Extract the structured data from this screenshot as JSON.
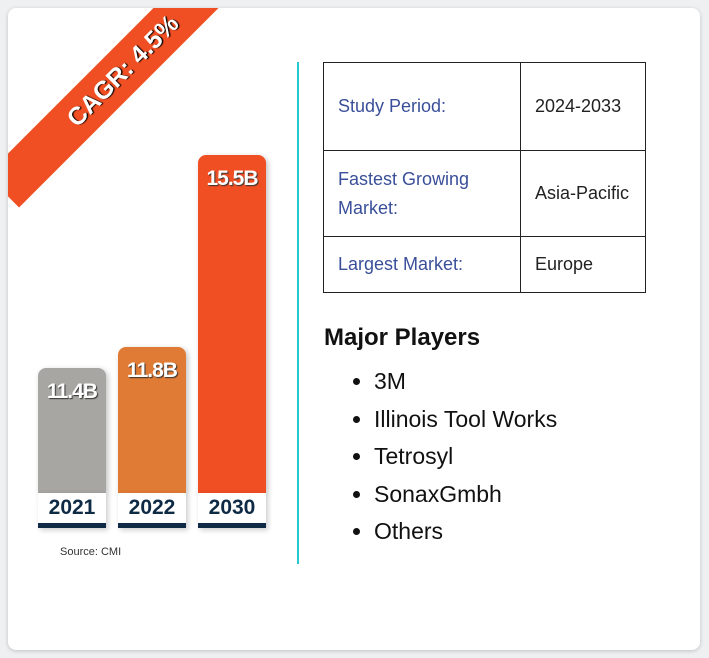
{
  "ribbon": {
    "label": "CAGR: 4.5%"
  },
  "chart_data": {
    "type": "bar",
    "categories": [
      "2021",
      "2022",
      "2030"
    ],
    "values": [
      11.4,
      11.8,
      15.5
    ],
    "value_labels": [
      "11.4B",
      "11.8B",
      "15.5B"
    ],
    "colors": [
      "#a8a6a3",
      "#e07b35",
      "#f04e23"
    ],
    "source": "Source: CMI"
  },
  "table": [
    {
      "key": "Study Period:",
      "value": "2024-2033"
    },
    {
      "key": "Fastest Growing Market:",
      "value": "Asia-Pacific"
    },
    {
      "key": "Largest Market:",
      "value": "Europe"
    }
  ],
  "players": {
    "title": "Major Players",
    "items": [
      "3M",
      "Illinois Tool Works",
      "Tetrosyl",
      "SonaxGmbh",
      "Others"
    ]
  }
}
